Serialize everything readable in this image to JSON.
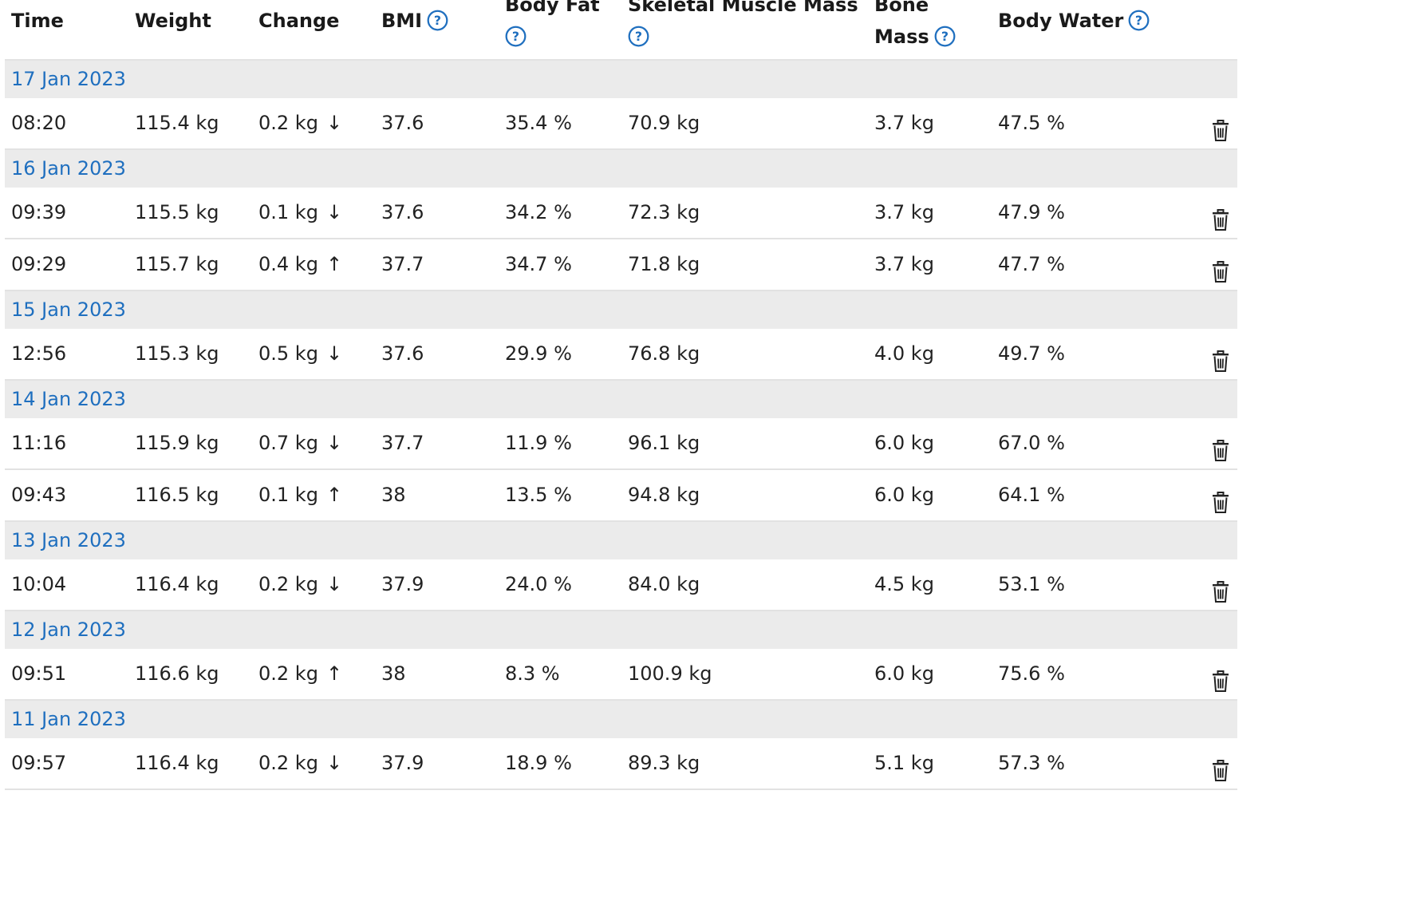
{
  "colors": {
    "link": "#1f6fbf",
    "date_row_bg": "#ebebeb",
    "border": "#e2e2e2"
  },
  "headers": {
    "time": "Time",
    "weight": "Weight",
    "change": "Change",
    "bmi": "BMI",
    "body_fat": "Body Fat",
    "skeletal_muscle_mass": "Skeletal Muscle Mass",
    "bone_mass_1": "Bone",
    "bone_mass_2": "Mass",
    "body_water": "Body Water"
  },
  "help_icon": "question-circle-icon",
  "delete_icon": "trash-icon",
  "groups": [
    {
      "date": "17 Jan 2023",
      "rows": [
        {
          "time": "08:20",
          "weight": "115.4 kg",
          "change": "0.2 kg",
          "arrow": "↓",
          "bmi": "37.6",
          "fat": "35.4 %",
          "muscle": "70.9 kg",
          "bone": "3.7 kg",
          "water": "47.5 %"
        }
      ]
    },
    {
      "date": "16 Jan 2023",
      "rows": [
        {
          "time": "09:39",
          "weight": "115.5 kg",
          "change": "0.1 kg",
          "arrow": "↓",
          "bmi": "37.6",
          "fat": "34.2 %",
          "muscle": "72.3 kg",
          "bone": "3.7 kg",
          "water": "47.9 %"
        },
        {
          "time": "09:29",
          "weight": "115.7 kg",
          "change": "0.4 kg",
          "arrow": "↑",
          "bmi": "37.7",
          "fat": "34.7 %",
          "muscle": "71.8 kg",
          "bone": "3.7 kg",
          "water": "47.7 %"
        }
      ]
    },
    {
      "date": "15 Jan 2023",
      "rows": [
        {
          "time": "12:56",
          "weight": "115.3 kg",
          "change": "0.5 kg",
          "arrow": "↓",
          "bmi": "37.6",
          "fat": "29.9 %",
          "muscle": "76.8 kg",
          "bone": "4.0 kg",
          "water": "49.7 %"
        }
      ]
    },
    {
      "date": "14 Jan 2023",
      "rows": [
        {
          "time": "11:16",
          "weight": "115.9 kg",
          "change": "0.7 kg",
          "arrow": "↓",
          "bmi": "37.7",
          "fat": "11.9 %",
          "muscle": "96.1 kg",
          "bone": "6.0 kg",
          "water": "67.0 %"
        },
        {
          "time": "09:43",
          "weight": "116.5 kg",
          "change": "0.1 kg",
          "arrow": "↑",
          "bmi": "38",
          "fat": "13.5 %",
          "muscle": "94.8 kg",
          "bone": "6.0 kg",
          "water": "64.1 %"
        }
      ]
    },
    {
      "date": "13 Jan 2023",
      "rows": [
        {
          "time": "10:04",
          "weight": "116.4 kg",
          "change": "0.2 kg",
          "arrow": "↓",
          "bmi": "37.9",
          "fat": "24.0 %",
          "muscle": "84.0 kg",
          "bone": "4.5 kg",
          "water": "53.1 %"
        }
      ]
    },
    {
      "date": "12 Jan 2023",
      "rows": [
        {
          "time": "09:51",
          "weight": "116.6 kg",
          "change": "0.2 kg",
          "arrow": "↑",
          "bmi": "38",
          "fat": "8.3 %",
          "muscle": "100.9 kg",
          "bone": "6.0 kg",
          "water": "75.6 %"
        }
      ]
    },
    {
      "date": "11 Jan 2023",
      "rows": [
        {
          "time": "09:57",
          "weight": "116.4 kg",
          "change": "0.2 kg",
          "arrow": "↓",
          "bmi": "37.9",
          "fat": "18.9 %",
          "muscle": "89.3 kg",
          "bone": "5.1 kg",
          "water": "57.3 %"
        }
      ]
    }
  ]
}
